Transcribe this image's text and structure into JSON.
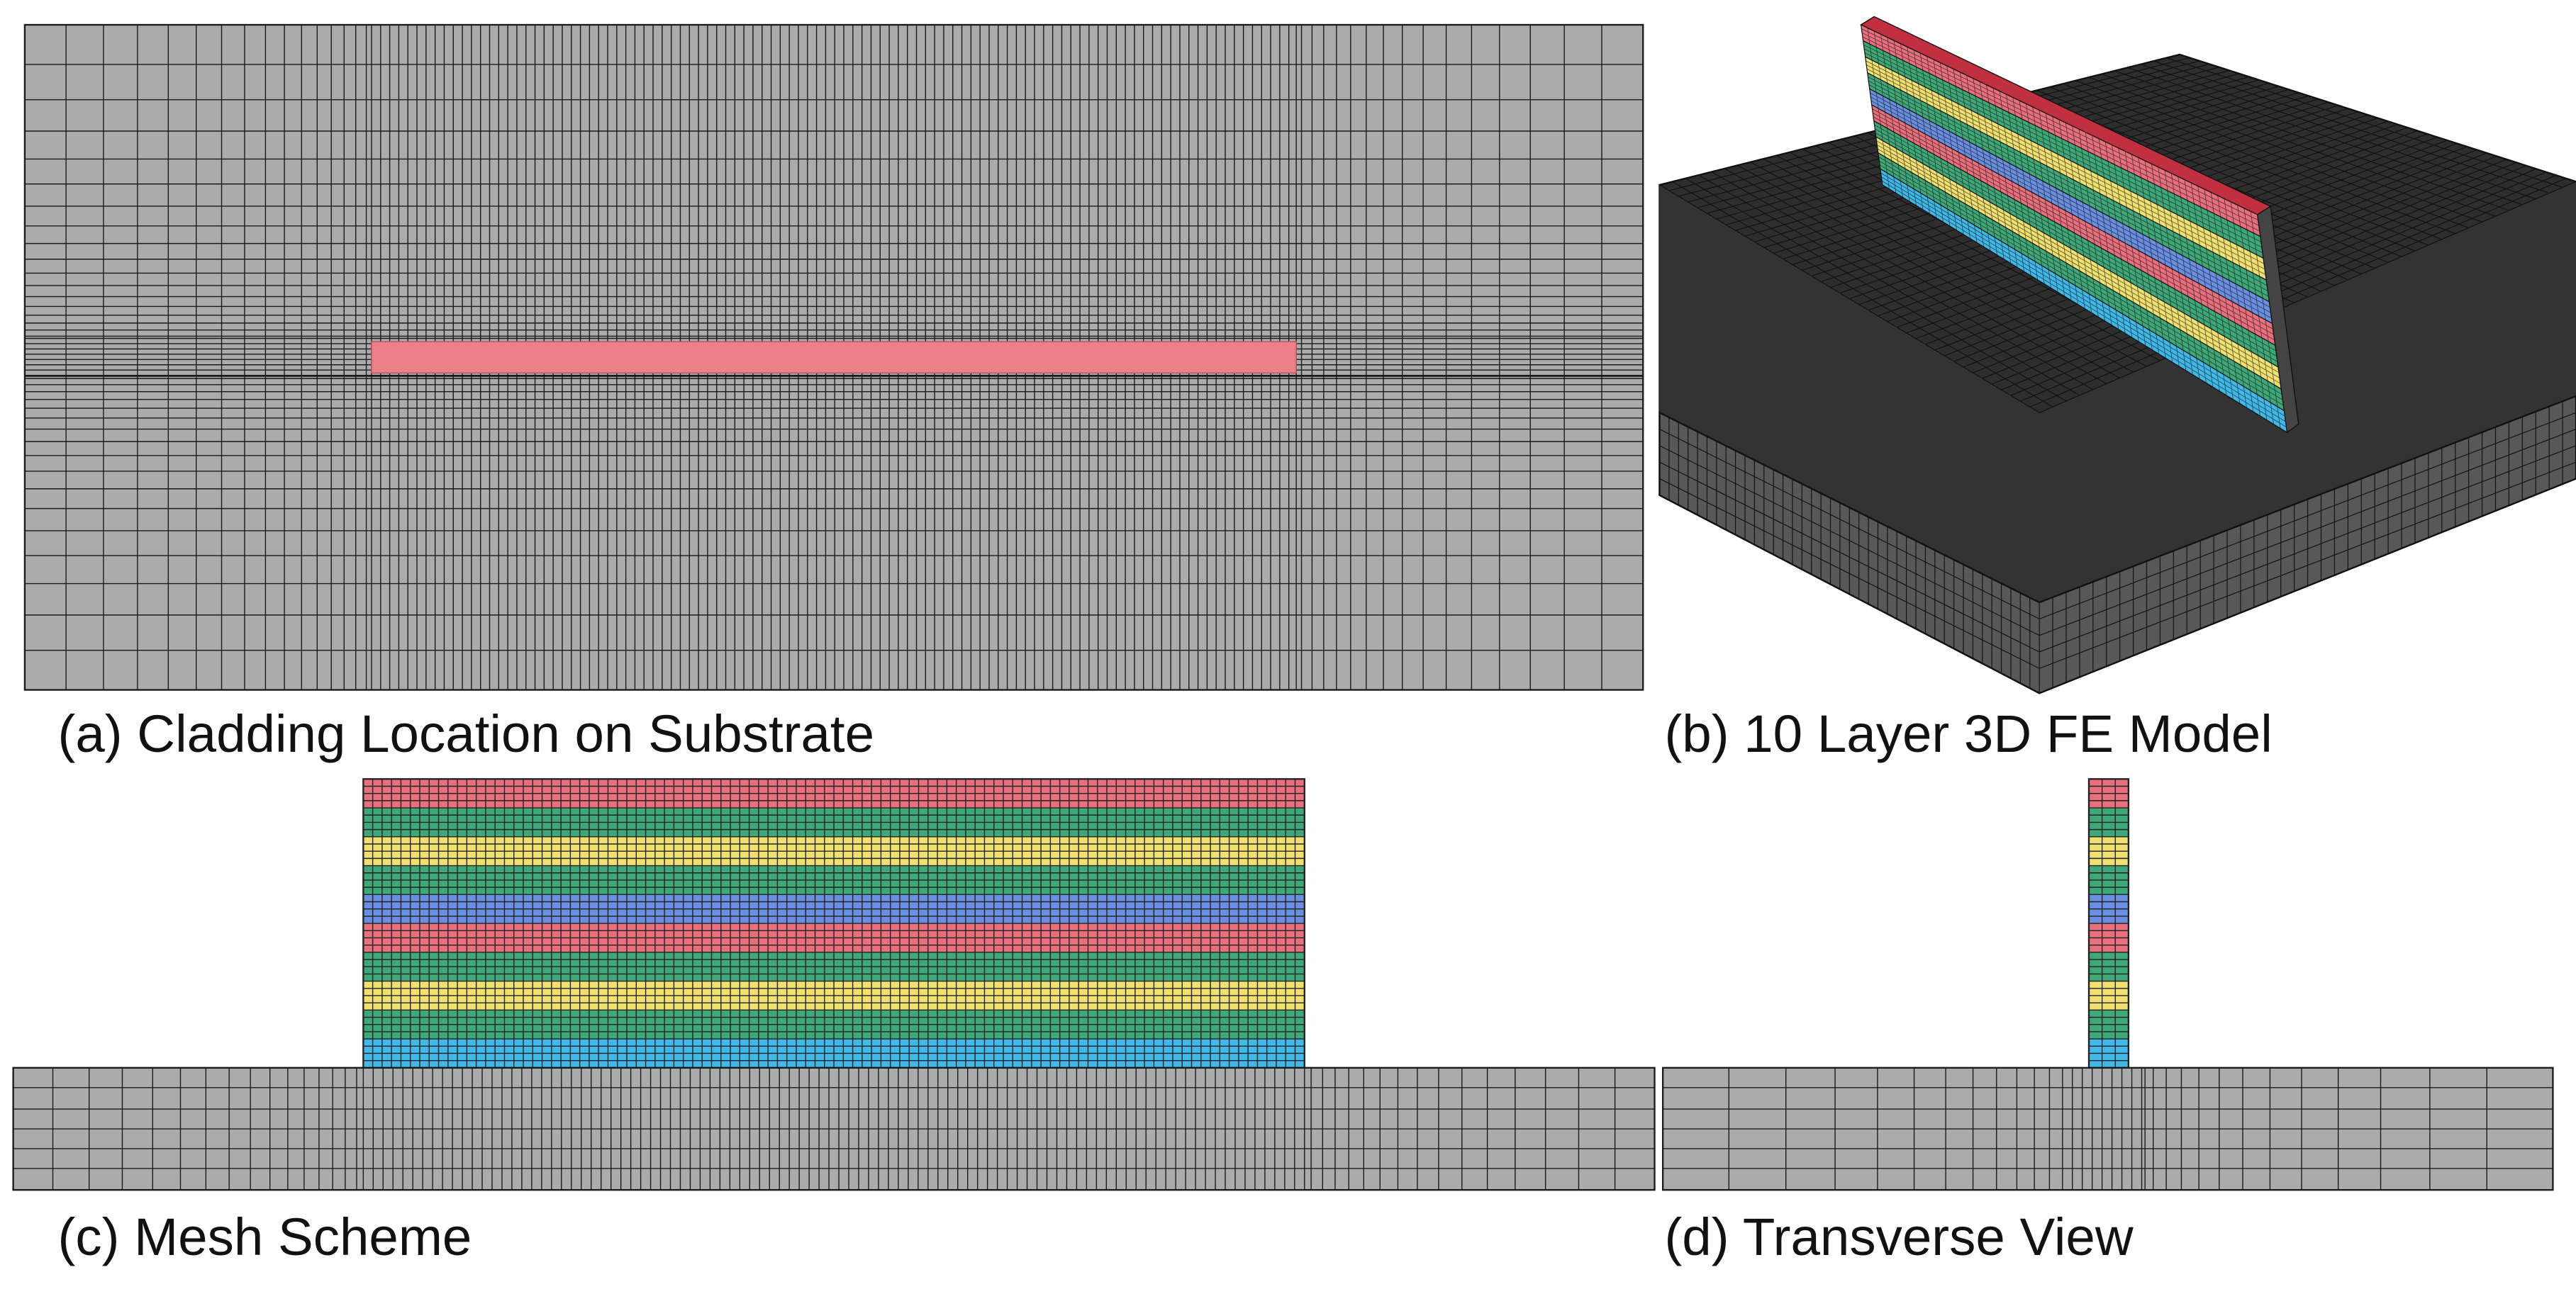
{
  "panels": [
    {
      "caption": "(a) Cladding Location on Substrate"
    },
    {
      "caption": "(b) 10 Layer 3D FE Model"
    },
    {
      "caption": "(c) Mesh Scheme"
    },
    {
      "caption": "(d) Transverse View"
    }
  ]
}
